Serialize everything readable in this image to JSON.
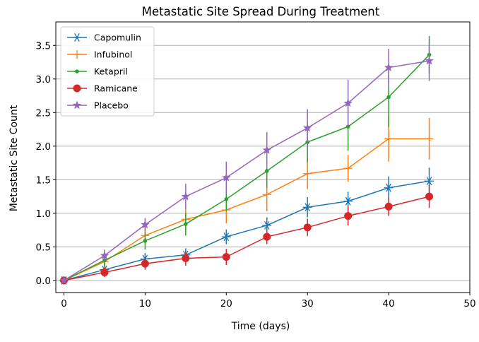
{
  "chart_data": {
    "type": "line",
    "title": "Metastatic Site Spread During Treatment",
    "xlabel": "Time (days)",
    "ylabel": "Metastatic Site Count",
    "xlim": [
      -1,
      50
    ],
    "ylim": [
      -0.18,
      3.85
    ],
    "xticks": [
      0,
      10,
      20,
      30,
      40,
      50
    ],
    "yticks": [
      0.0,
      0.5,
      1.0,
      1.5,
      2.0,
      2.5,
      3.0,
      3.5
    ],
    "ytick_labels": [
      "0.0",
      "0.5",
      "1.0",
      "1.5",
      "2.0",
      "2.5",
      "3.0",
      "3.5"
    ],
    "grid": "horizontal",
    "legend_position": "top-left",
    "x": [
      0,
      5,
      10,
      15,
      20,
      25,
      30,
      35,
      40,
      45
    ],
    "series": [
      {
        "name": "Capomulin",
        "color": "#1f77b4",
        "marker": "asterisk",
        "values": [
          0.0,
          0.16,
          0.32,
          0.38,
          0.65,
          0.82,
          1.09,
          1.18,
          1.38,
          1.48
        ],
        "errors": [
          0.0,
          0.07,
          0.09,
          0.1,
          0.11,
          0.12,
          0.15,
          0.14,
          0.17,
          0.2
        ]
      },
      {
        "name": "Infubinol",
        "color": "#ff7f0e",
        "marker": "plus",
        "values": [
          0.0,
          0.28,
          0.67,
          0.91,
          1.05,
          1.28,
          1.59,
          1.67,
          2.11,
          2.11
        ],
        "errors": [
          0.0,
          0.09,
          0.13,
          0.16,
          0.2,
          0.25,
          0.23,
          0.2,
          0.34,
          0.31
        ]
      },
      {
        "name": "Ketapril",
        "color": "#2ca02c",
        "marker": "dot",
        "values": [
          0.0,
          0.3,
          0.59,
          0.84,
          1.21,
          1.63,
          2.06,
          2.29,
          2.73,
          3.36
        ],
        "errors": [
          0.0,
          0.1,
          0.13,
          0.17,
          0.18,
          0.25,
          0.3,
          0.36,
          0.45,
          0.28
        ]
      },
      {
        "name": "Ramicane",
        "color": "#d62728",
        "marker": "circle",
        "values": [
          0.0,
          0.12,
          0.25,
          0.33,
          0.35,
          0.65,
          0.79,
          0.96,
          1.1,
          1.25
        ],
        "errors": [
          0.0,
          0.07,
          0.09,
          0.11,
          0.12,
          0.11,
          0.13,
          0.14,
          0.14,
          0.17
        ]
      },
      {
        "name": "Placebo",
        "color": "#9467bd",
        "marker": "star",
        "values": [
          0.0,
          0.37,
          0.83,
          1.25,
          1.53,
          1.94,
          2.27,
          2.64,
          3.17,
          3.27
        ],
        "errors": [
          0.0,
          0.09,
          0.1,
          0.19,
          0.24,
          0.27,
          0.28,
          0.35,
          0.28,
          0.3
        ]
      }
    ]
  }
}
